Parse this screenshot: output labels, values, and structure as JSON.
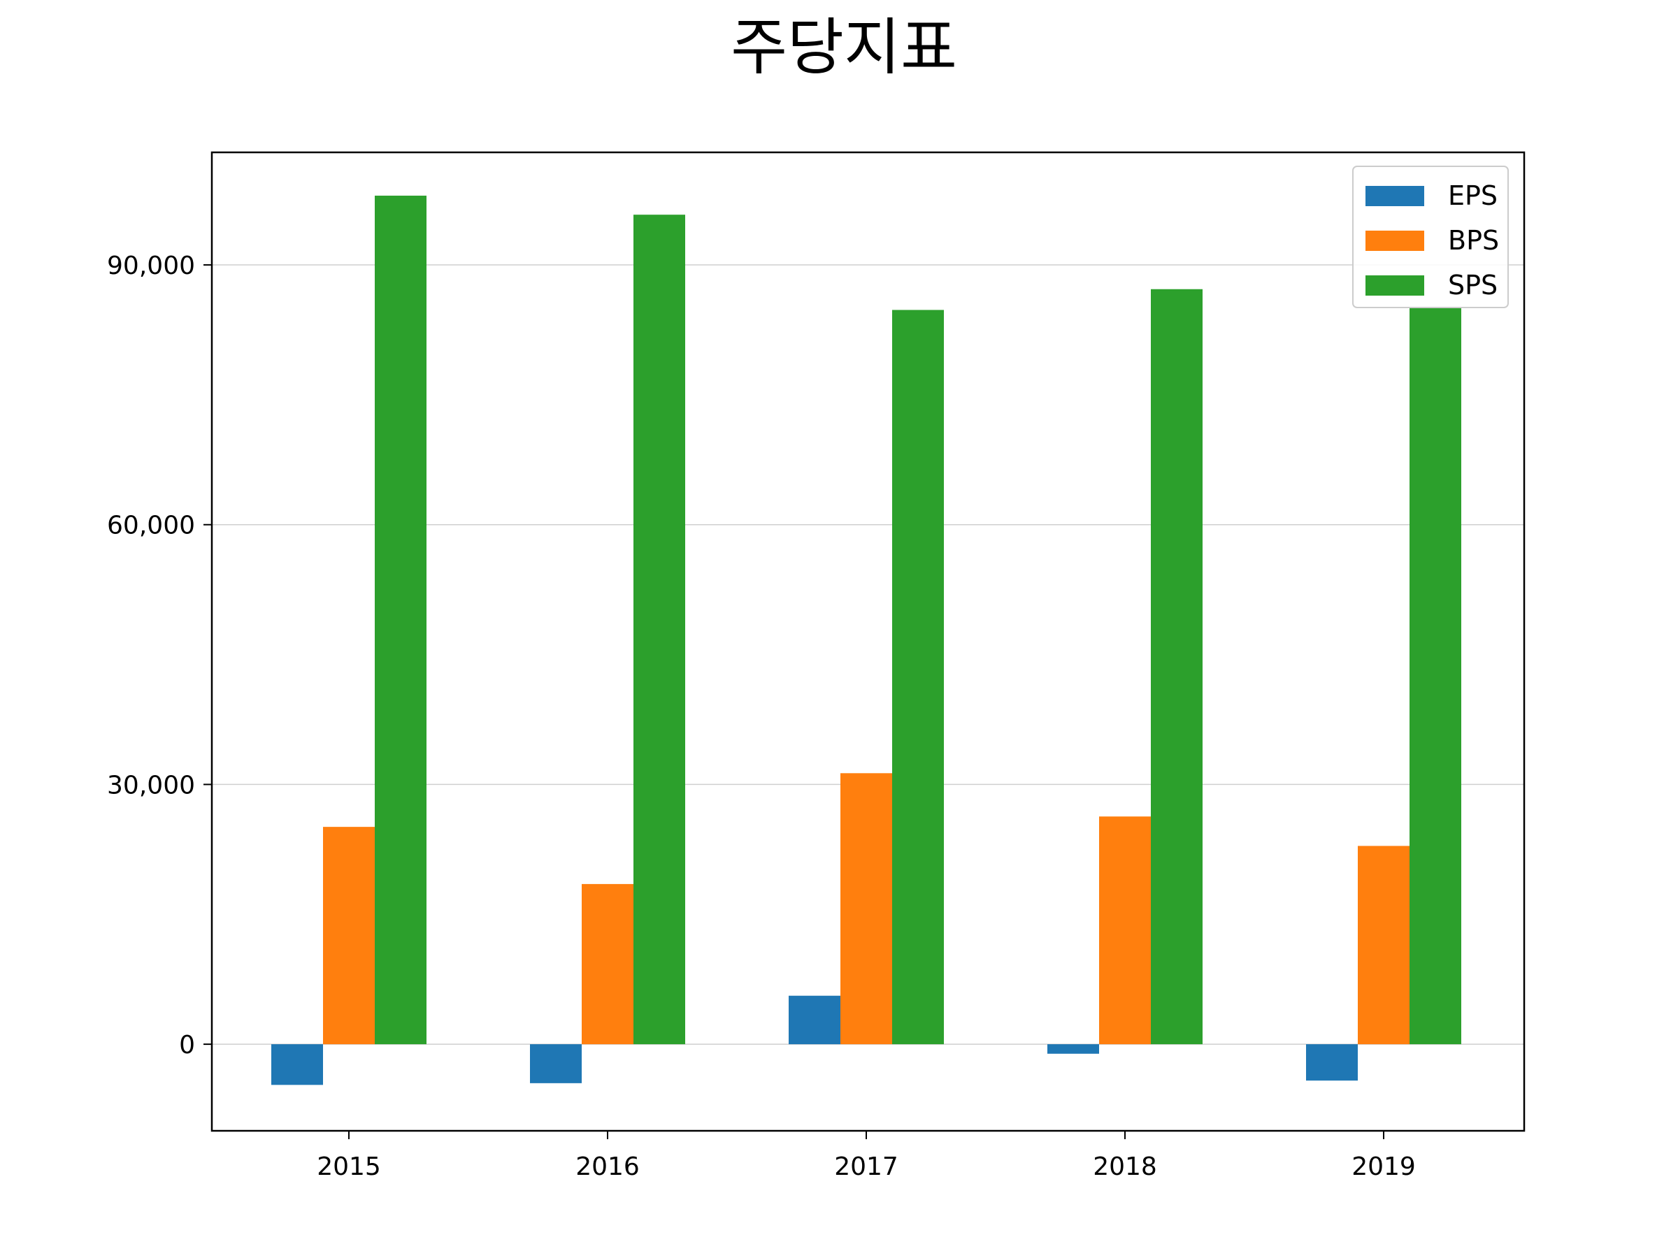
{
  "chart_data": {
    "type": "bar",
    "title": "주당지표",
    "xlabel": "",
    "ylabel": "",
    "categories": [
      "2015",
      "2016",
      "2017",
      "2018",
      "2019"
    ],
    "series": [
      {
        "name": "EPS",
        "color": "#1f77b4",
        "values": [
          -4700,
          -4500,
          5600,
          -1100,
          -4200
        ]
      },
      {
        "name": "BPS",
        "color": "#ff7f0e",
        "values": [
          25100,
          18500,
          31300,
          26300,
          22900
        ]
      },
      {
        "name": "SPS",
        "color": "#2ca02c",
        "values": [
          98000,
          95800,
          84800,
          87200,
          85000
        ]
      }
    ],
    "ylim": [
      -10000,
      103000
    ],
    "yticks": [
      0,
      30000,
      60000,
      90000
    ],
    "ytick_labels": [
      "0",
      "30,000",
      "60,000",
      "90,000"
    ],
    "grid": "y",
    "legend": "top-right"
  }
}
